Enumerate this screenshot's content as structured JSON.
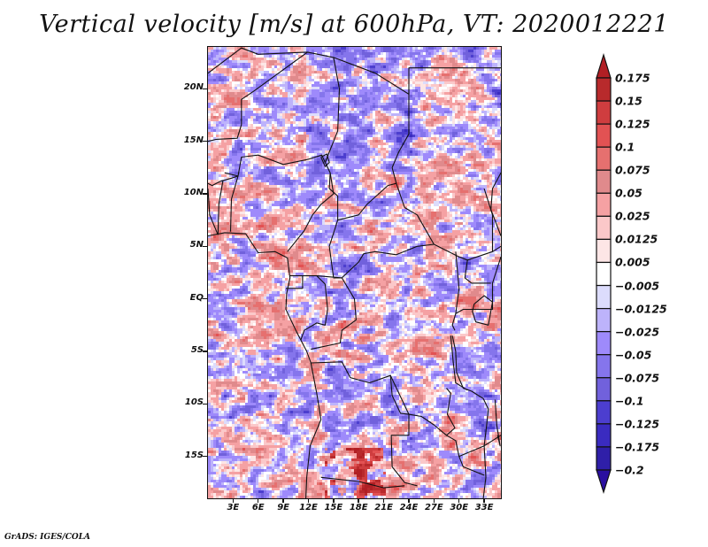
{
  "title": "Vertical velocity [m/s] at 600hPa, VT: 2020012221",
  "footer": "GrADS: IGES/COLA",
  "chart_data": {
    "type": "heatmap",
    "title": "Vertical velocity [m/s] at 600hPa, VT: 2020012221",
    "variable": "Vertical velocity",
    "units": "m/s",
    "level": "600hPa",
    "valid_time": "2020012221",
    "projection": "lat-lon",
    "lon_range": [
      0,
      35
    ],
    "lat_range": [
      -19,
      24
    ],
    "lon_ticks": [
      {
        "value": 3,
        "label": "3E"
      },
      {
        "value": 6,
        "label": "6E"
      },
      {
        "value": 9,
        "label": "9E"
      },
      {
        "value": 12,
        "label": "12E"
      },
      {
        "value": 15,
        "label": "15E"
      },
      {
        "value": 18,
        "label": "18E"
      },
      {
        "value": 21,
        "label": "21E"
      },
      {
        "value": 24,
        "label": "24E"
      },
      {
        "value": 27,
        "label": "27E"
      },
      {
        "value": 30,
        "label": "30E"
      },
      {
        "value": 33,
        "label": "33E"
      }
    ],
    "lat_ticks": [
      {
        "value": 20,
        "label": "20N"
      },
      {
        "value": 15,
        "label": "15N"
      },
      {
        "value": 10,
        "label": "10N"
      },
      {
        "value": 5,
        "label": "5N"
      },
      {
        "value": 0,
        "label": "EQ"
      },
      {
        "value": -5,
        "label": "5S"
      },
      {
        "value": -10,
        "label": "10S"
      },
      {
        "value": -15,
        "label": "15S"
      }
    ],
    "colorbar": {
      "orientation": "vertical",
      "placement": "right",
      "extend": "both",
      "levels": [
        0.175,
        0.15,
        0.125,
        0.1,
        0.075,
        0.05,
        0.025,
        0.0125,
        0.005,
        -0.005,
        -0.0125,
        -0.025,
        -0.05,
        -0.075,
        -0.1,
        -0.125,
        -0.175,
        -0.2
      ],
      "labels": [
        "0.175",
        "0.15",
        "0.125",
        "0.1",
        "0.075",
        "0.05",
        "0.025",
        "0.0125",
        "0.005",
        "−0.005",
        "−0.0125",
        "−0.025",
        "−0.05",
        "−0.075",
        "−0.1",
        "−0.125",
        "−0.175",
        "−0.2"
      ],
      "colors": [
        "#b11f24",
        "#b82a2c",
        "#cf3d3f",
        "#e25253",
        "#e6706f",
        "#e08a8c",
        "#f5a1a3",
        "#fbc8c9",
        "#fde6e6",
        "#ffffff",
        "#dcdcfc",
        "#bdb3fb",
        "#9e8afb",
        "#8575ec",
        "#7161dc",
        "#4c3ecf",
        "#3a2bc0",
        "#2f1fa8",
        "#2a0fa0"
      ]
    },
    "boundaries": "country borders and coastlines (black)"
  }
}
